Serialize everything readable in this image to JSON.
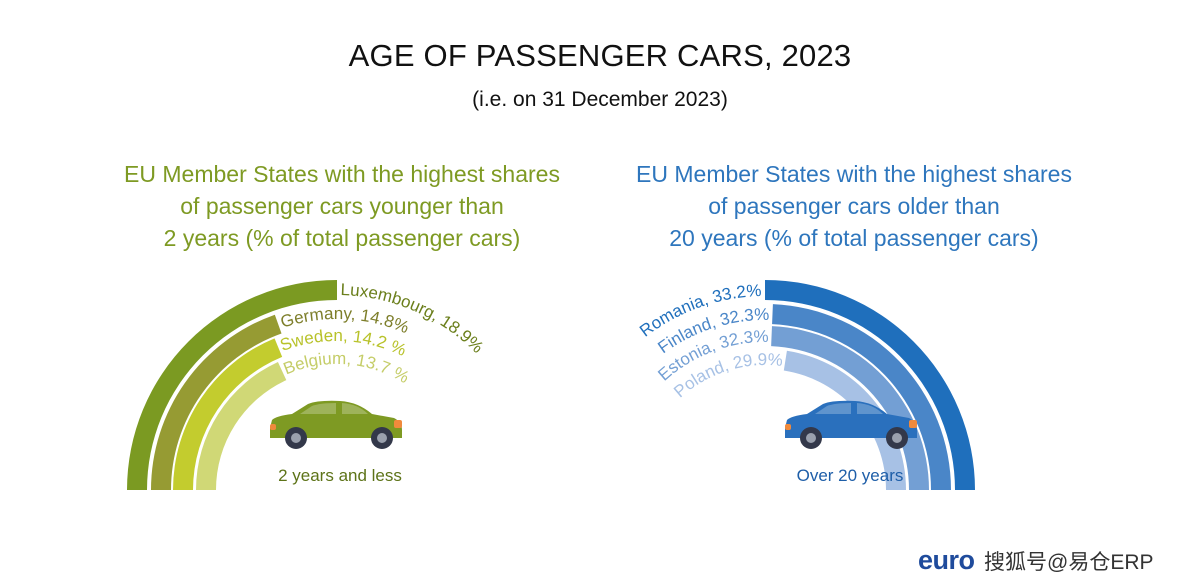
{
  "title": "AGE OF PASSENGER CARS, 2023",
  "subtitle": "(i.e. on 31 December 2023)",
  "brand": "euro",
  "watermark": "搜狐号@易仓ERP",
  "chart_data": [
    {
      "type": "radial-bar",
      "title": "EU Member States with the highest shares\nof passenger cars younger than\n2 years (% of total passenger cars)",
      "caption": "2 years and less",
      "unit": "%",
      "categories": [
        "Luxembourg",
        "Germany",
        "Sweden",
        "Belgium"
      ],
      "values": [
        18.9,
        14.8,
        14.2,
        13.7
      ],
      "labels": [
        "Luxembourg, 18.9%",
        "Germany, 14.8%",
        "Sweden, 14.2 %",
        "Belgium, 13.7 %"
      ],
      "colors": [
        "#7b9a22",
        "#969b33",
        "#c3cc2e",
        "#d0d876"
      ],
      "car_color": "#7e9a23"
    },
    {
      "type": "radial-bar",
      "title": "EU Member States with the highest shares\nof passenger cars older than\n20 years (% of total passenger cars)",
      "caption": "Over 20 years",
      "unit": "%",
      "categories": [
        "Romania",
        "Finland",
        "Estonia",
        "Poland"
      ],
      "values": [
        33.2,
        32.3,
        32.3,
        29.9
      ],
      "labels": [
        "Romania, 33.2%",
        "Finland, 32.3%",
        "Estonia, 32.3%",
        "Poland, 29.9%"
      ],
      "colors": [
        "#1f6fbc",
        "#4a86c8",
        "#739fd4",
        "#a7c1e5"
      ],
      "car_color": "#2a70bd"
    }
  ]
}
